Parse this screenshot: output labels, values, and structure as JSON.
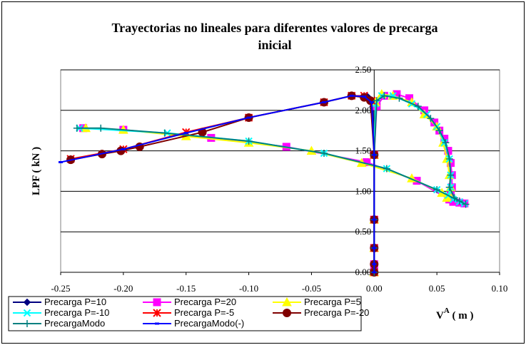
{
  "chart_data": {
    "type": "line",
    "title_line1": "Trayectorias no lineales para diferentes valores de precarga",
    "title_line2": "inicial",
    "ylabel": "LPF  ( kN )",
    "xlabel_main": "V",
    "xlabel_sup": "A",
    "xlabel_unit": " ( m )",
    "xlim": [
      -0.25,
      0.1
    ],
    "ylim": [
      0.0,
      2.5
    ],
    "xticks": [
      "-0.25",
      "-0.20",
      "-0.15",
      "-0.10",
      "-0.05",
      "0.00",
      "0.05",
      "0.10"
    ],
    "yticks": [
      "0.00",
      "0.50",
      "1.00",
      "1.50",
      "2.00",
      "2.50"
    ],
    "grid": "horizontal",
    "legend_position": "bottom",
    "series": [
      {
        "name": "Precarga P=10",
        "color": "#000080",
        "marker": "diamond",
        "x": [
          0.0,
          0.0,
          0.0,
          0.0,
          0.0,
          0.0,
          -0.001,
          -0.002,
          -0.004,
          -0.006
        ],
        "y": [
          0.0,
          0.05,
          0.1,
          0.3,
          0.65,
          1.45,
          2.05,
          2.1,
          2.15,
          2.18
        ]
      },
      {
        "name": "Precarga P=20",
        "color": "#ff00ff",
        "marker": "square",
        "x": [
          0.0,
          0.0,
          0.0,
          0.0,
          0.0,
          0.002,
          0.008,
          0.018,
          0.028,
          0.04,
          0.048,
          0.052,
          0.056,
          0.059,
          0.061,
          0.062,
          0.062,
          0.061,
          0.06,
          0.063,
          0.068,
          0.072,
          0.06,
          0.034,
          -0.006,
          -0.07,
          -0.13,
          -0.2,
          -0.232
        ],
        "y": [
          0.0,
          0.1,
          0.3,
          0.65,
          1.45,
          2.05,
          2.18,
          2.2,
          2.15,
          2.0,
          1.85,
          1.75,
          1.65,
          1.5,
          1.35,
          1.2,
          1.05,
          0.95,
          0.9,
          0.87,
          0.86,
          0.85,
          0.9,
          1.13,
          1.36,
          1.55,
          1.66,
          1.76,
          1.78
        ]
      },
      {
        "name": "Precarga P=5",
        "color": "#ffff00",
        "marker": "triangle",
        "x": [
          0.0,
          0.0,
          0.0,
          0.0,
          0.001,
          0.006,
          0.015,
          0.03,
          0.04,
          0.05,
          0.055,
          0.058,
          0.06,
          0.061,
          0.06,
          0.058,
          0.054,
          0.03,
          -0.01,
          -0.05,
          -0.1,
          -0.15,
          -0.2,
          -0.23
        ],
        "y": [
          0.0,
          0.3,
          0.65,
          1.45,
          2.1,
          2.2,
          2.18,
          2.1,
          1.95,
          1.8,
          1.6,
          1.4,
          1.2,
          1.05,
          0.95,
          0.92,
          0.98,
          1.16,
          1.35,
          1.5,
          1.6,
          1.68,
          1.76,
          1.78
        ]
      },
      {
        "name": "Precarga P=-10",
        "color": "#00ffff",
        "marker": "x",
        "x": [
          0.0,
          0.0,
          0.0,
          0.0,
          0.001,
          0.006,
          0.015,
          0.03,
          0.042,
          0.05,
          0.056,
          0.06,
          0.061,
          0.061,
          0.059,
          0.063,
          0.068,
          0.072,
          0.05,
          0.01,
          -0.04,
          -0.1,
          -0.165,
          -0.235
        ],
        "y": [
          0.0,
          0.3,
          0.65,
          1.45,
          2.08,
          2.18,
          2.18,
          2.08,
          1.95,
          1.8,
          1.6,
          1.4,
          1.2,
          1.05,
          0.95,
          0.9,
          0.87,
          0.85,
          1.02,
          1.28,
          1.47,
          1.62,
          1.72,
          1.78
        ]
      },
      {
        "name": "Precarga P=-5",
        "color": "#ff0000",
        "marker": "asterisk",
        "x": [
          0.0,
          0.0,
          0.0,
          0.0,
          -0.002,
          -0.008,
          -0.018,
          -0.04,
          -0.1,
          -0.15,
          -0.2,
          -0.242
        ],
        "y": [
          0.0,
          0.3,
          0.65,
          1.45,
          2.12,
          2.18,
          2.18,
          2.1,
          1.91,
          1.73,
          1.52,
          1.4
        ]
      },
      {
        "name": "Precarga P=-20",
        "color": "#800000",
        "marker": "circle",
        "x": [
          0.0,
          0.0,
          0.0,
          0.0,
          0.0,
          -0.003,
          -0.008,
          -0.018,
          -0.04,
          -0.1,
          -0.137,
          -0.187,
          -0.202,
          -0.217,
          -0.242
        ],
        "y": [
          0.0,
          0.1,
          0.3,
          0.65,
          1.45,
          2.12,
          2.16,
          2.18,
          2.1,
          1.91,
          1.73,
          1.55,
          1.5,
          1.46,
          1.39
        ]
      },
      {
        "name": "PrecargaModo",
        "color": "#008080",
        "marker": "plus",
        "x": [
          0.0,
          0.0,
          0.0,
          0.0,
          0.002,
          0.008,
          0.02,
          0.035,
          0.045,
          0.052,
          0.057,
          0.06,
          0.061,
          0.06,
          0.064,
          0.068,
          0.073,
          0.05,
          0.01,
          -0.04,
          -0.1,
          -0.167,
          -0.218,
          -0.237
        ],
        "y": [
          0.0,
          0.3,
          0.65,
          1.45,
          2.12,
          2.18,
          2.15,
          2.05,
          1.9,
          1.75,
          1.6,
          1.4,
          1.2,
          1.05,
          0.92,
          0.88,
          0.84,
          1.02,
          1.28,
          1.47,
          1.62,
          1.72,
          1.78,
          1.78
        ]
      },
      {
        "name": "PrecargaModo(-)",
        "color": "#0000ff",
        "marker": "dash",
        "x": [
          0.0,
          0.0,
          0.0,
          0.0,
          0.0,
          -0.002,
          -0.008,
          -0.018,
          -0.04,
          -0.1,
          -0.15,
          -0.2,
          -0.25
        ],
        "y": [
          0.0,
          0.1,
          0.3,
          0.65,
          1.45,
          2.1,
          2.17,
          2.18,
          2.1,
          1.91,
          1.72,
          1.52,
          1.36
        ]
      }
    ]
  }
}
